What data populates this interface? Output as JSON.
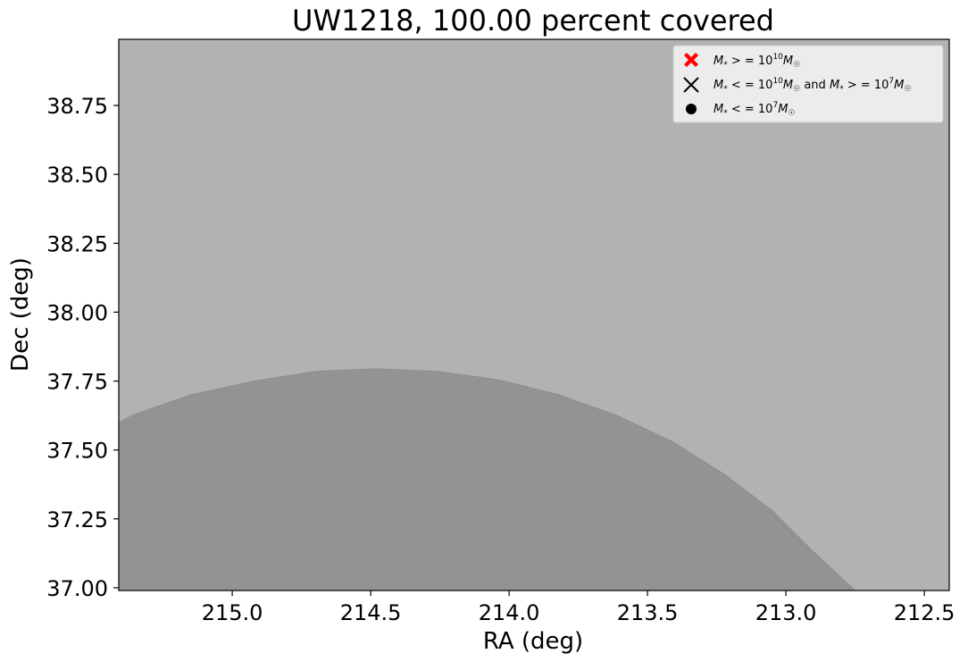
{
  "chart_data": {
    "type": "area",
    "title": "UW1218, 100.00 percent covered",
    "xlabel": "RA (deg)",
    "ylabel": "Dec (deg)",
    "xlim": [
      215.41,
      212.41
    ],
    "ylim": [
      36.99,
      38.99
    ],
    "x_inverted": true,
    "x_ticks": [
      215.0,
      214.5,
      214.0,
      213.5,
      213.0,
      212.5
    ],
    "x_tick_labels": [
      "215.0",
      "214.5",
      "214.0",
      "213.5",
      "213.0",
      "212.5"
    ],
    "y_ticks": [
      37.0,
      37.25,
      37.5,
      37.75,
      38.0,
      38.25,
      38.5,
      38.75
    ],
    "y_tick_labels": [
      "37.00",
      "37.25",
      "37.50",
      "37.75",
      "38.00",
      "38.25",
      "38.50",
      "38.75"
    ],
    "grid": false,
    "legend_position": "top-right",
    "background_region": {
      "color": "#b2b2b2"
    },
    "series": [
      {
        "type": "area",
        "color": "#939393",
        "x": [
          215.41,
          215.35,
          215.15,
          214.92,
          214.7,
          214.48,
          214.26,
          214.04,
          213.82,
          213.61,
          213.41,
          213.22,
          213.05,
          212.9,
          212.75
        ],
        "y": [
          37.6,
          37.63,
          37.7,
          37.75,
          37.785,
          37.795,
          37.785,
          37.755,
          37.7,
          37.625,
          37.53,
          37.41,
          37.28,
          37.13,
          36.99
        ]
      }
    ],
    "legend": [
      {
        "marker": "filled-x",
        "color": "#ff0000",
        "label": "M* >= 10^10 M☉"
      },
      {
        "marker": "x",
        "color": "#000000",
        "label": "M* <= 10^10 M☉ and M* >= 10^7 M☉"
      },
      {
        "marker": "circle",
        "color": "#000000",
        "label": "M* <= 10^7 M☉"
      }
    ]
  }
}
